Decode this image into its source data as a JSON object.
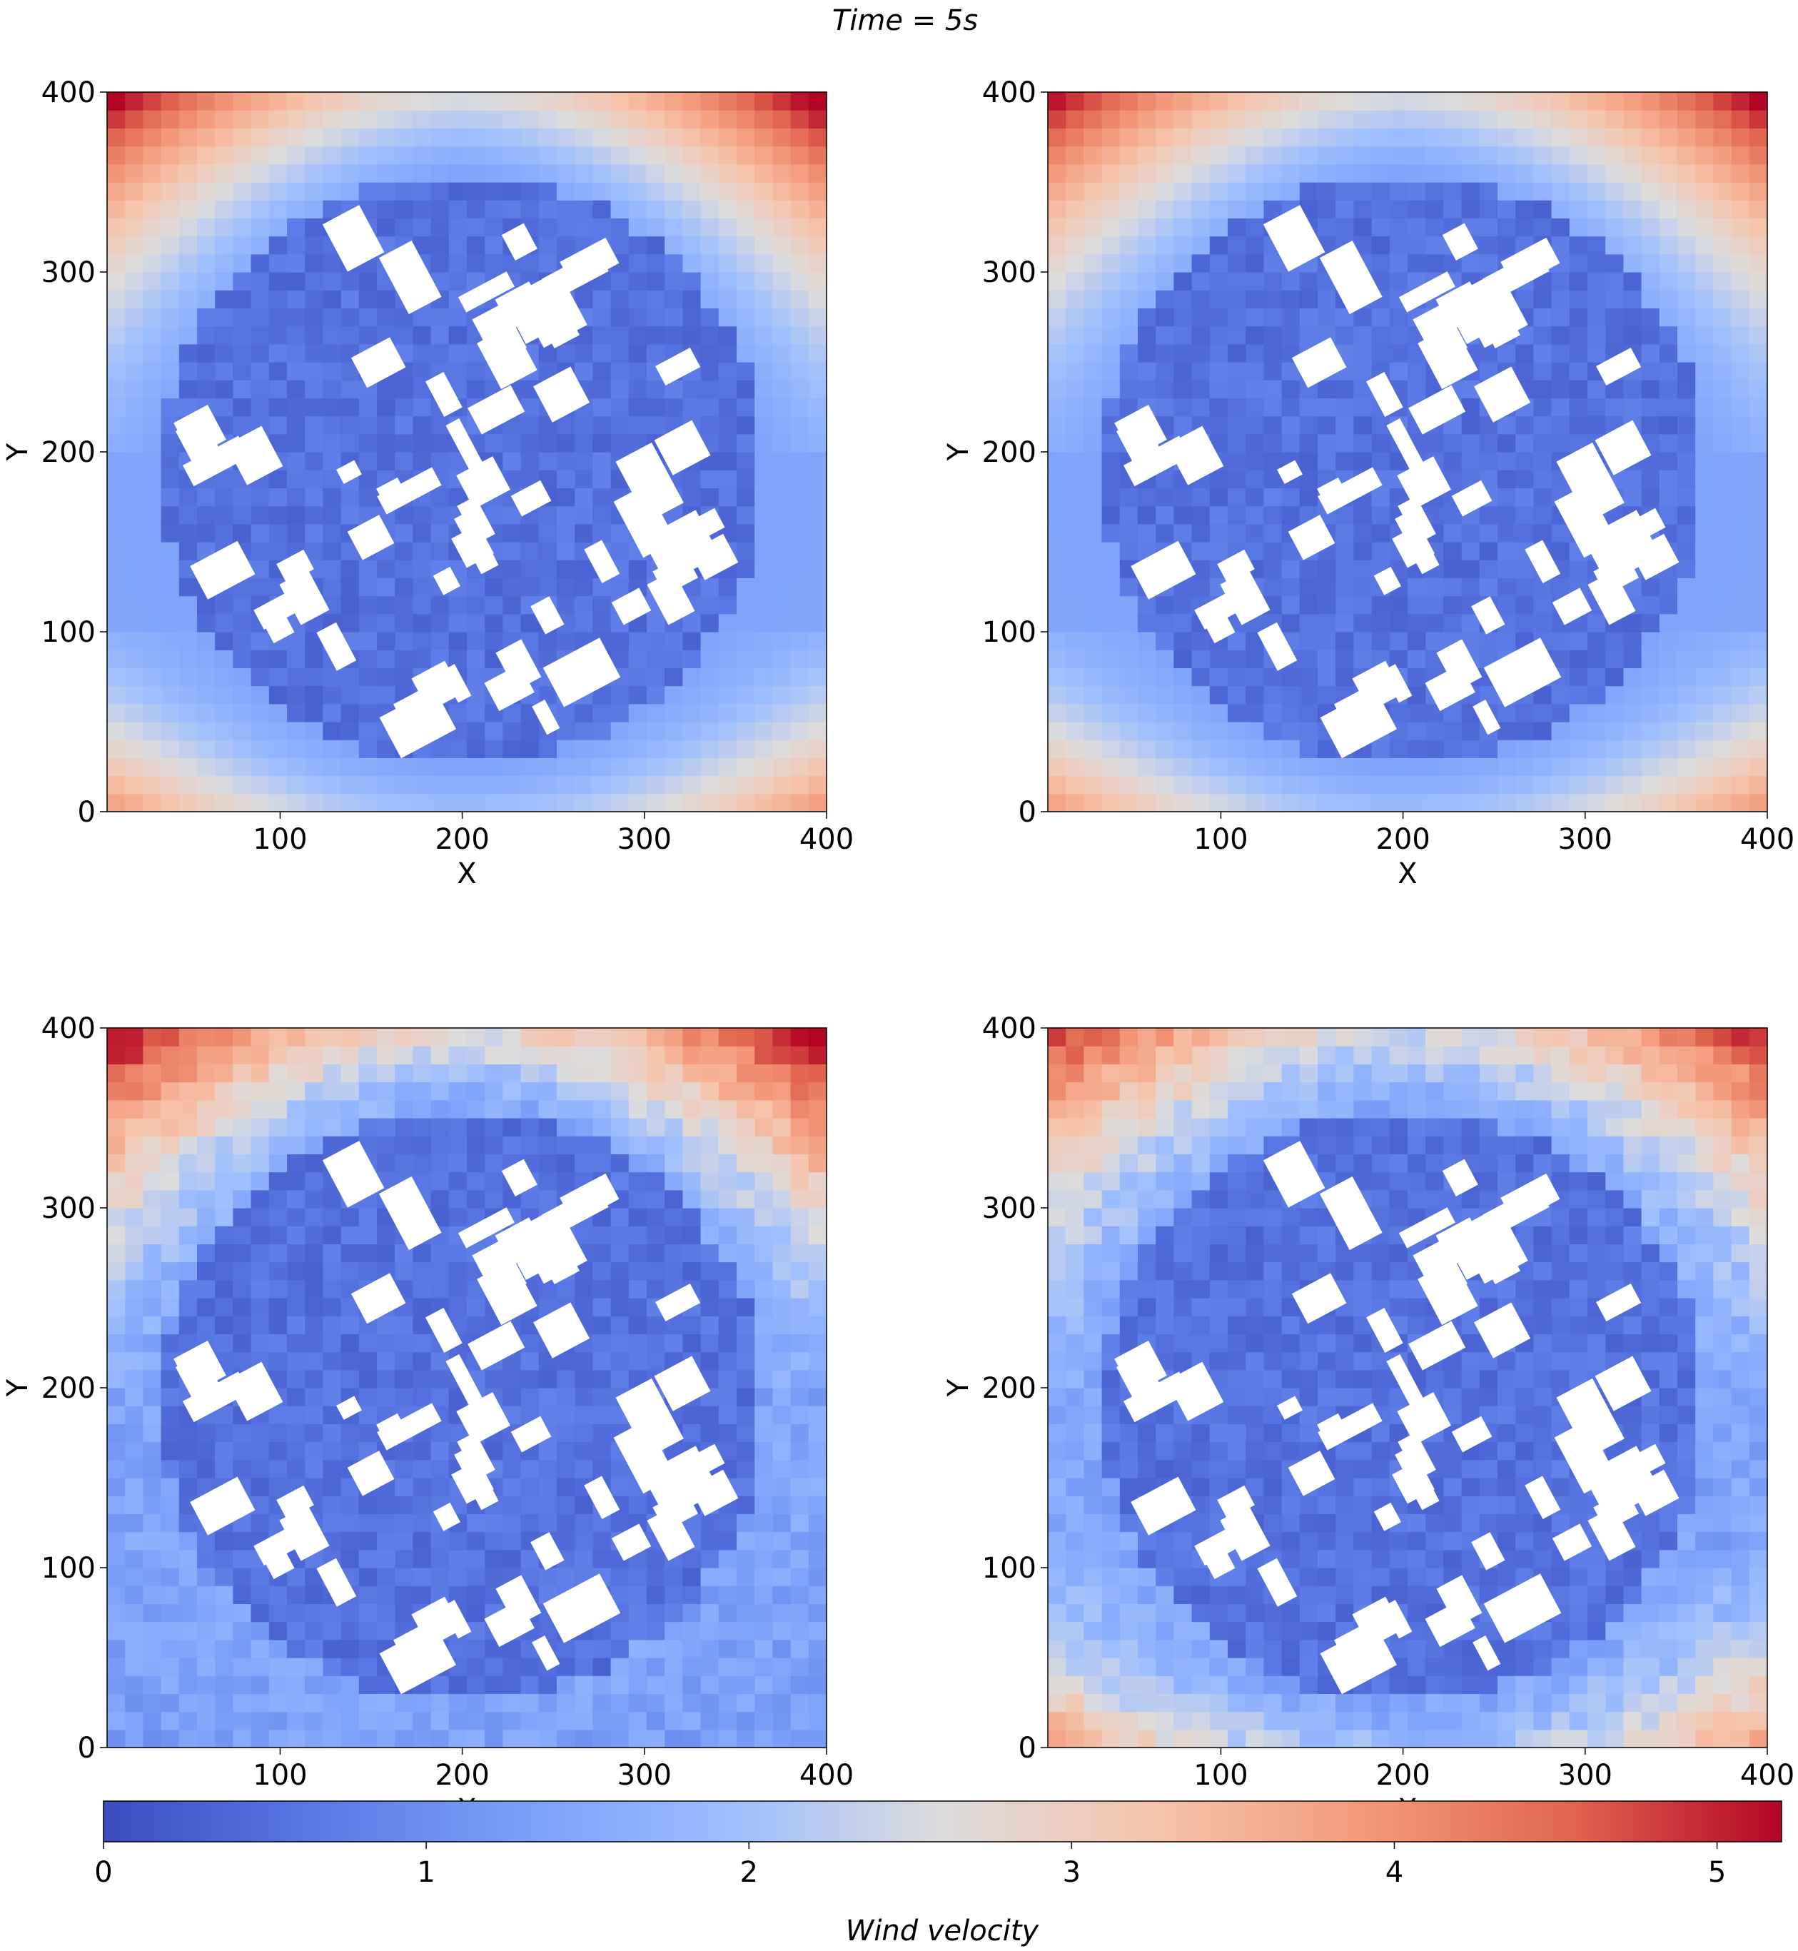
{
  "figure": {
    "suptitle": "Time = 5s"
  },
  "colors": {
    "colormap": "coolwarm",
    "low": "#3b4cc0",
    "mid": "#dddcdc",
    "high": "#b40426",
    "obstacle": "#ffffff"
  },
  "chart_data": [
    {
      "type": "heatmap",
      "panel": "top-left",
      "xlabel": "X",
      "ylabel": "Y",
      "xlim": [
        5,
        400
      ],
      "ylim": [
        0,
        400
      ],
      "xticks": [
        "100",
        "200",
        "300",
        "400"
      ],
      "yticks": [
        "0",
        "100",
        "200",
        "300",
        "400"
      ],
      "field": {
        "corner_top": 4.9,
        "edge_top": 4.2,
        "edge_bottom": 4.0,
        "interior_min": 0.3,
        "obstacle_disk_center": [
          200,
          190
        ],
        "obstacle_disk_radius": 165
      },
      "style": "smooth"
    },
    {
      "type": "heatmap",
      "panel": "top-right",
      "xlabel": "X",
      "ylabel": "Y",
      "xlim": [
        5,
        400
      ],
      "ylim": [
        0,
        400
      ],
      "xticks": [
        "100",
        "200",
        "300",
        "400"
      ],
      "yticks": [
        "0",
        "100",
        "200",
        "300",
        "400"
      ],
      "field": {
        "corner_top": 4.8,
        "edge_top": 4.1,
        "edge_bottom": 4.0,
        "interior_min": 0.3,
        "obstacle_disk_center": [
          200,
          190
        ],
        "obstacle_disk_radius": 165
      },
      "style": "smooth"
    },
    {
      "type": "heatmap",
      "panel": "bottom-left",
      "xlabel": "X",
      "ylabel": "Y",
      "xlim": [
        5,
        400
      ],
      "ylim": [
        0,
        400
      ],
      "xticks": [
        "100",
        "200",
        "300",
        "400"
      ],
      "yticks": [
        "0",
        "100",
        "200",
        "300",
        "400"
      ],
      "field": {
        "corner_top": 5.0,
        "edge_top": 4.4,
        "edge_bottom": 1.2,
        "interior_min": 0.3,
        "obstacle_disk_center": [
          200,
          190
        ],
        "obstacle_disk_radius": 165
      },
      "style": "patchy"
    },
    {
      "type": "heatmap",
      "panel": "bottom-right",
      "xlabel": "X",
      "ylabel": "Y",
      "xlim": [
        5,
        400
      ],
      "ylim": [
        0,
        400
      ],
      "xticks": [
        "100",
        "200",
        "300",
        "400"
      ],
      "yticks": [
        "0",
        "100",
        "200",
        "300",
        "400"
      ],
      "field": {
        "corner_top": 4.5,
        "edge_top": 4.0,
        "edge_bottom": 3.9,
        "interior_min": 0.3,
        "obstacle_disk_center": [
          200,
          190
        ],
        "obstacle_disk_radius": 165
      },
      "style": "patchy"
    }
  ],
  "colorbar": {
    "label": "Wind velocity",
    "range": [
      0,
      5.2
    ],
    "ticks": [
      "0",
      "1",
      "2",
      "3",
      "4",
      "5"
    ]
  }
}
